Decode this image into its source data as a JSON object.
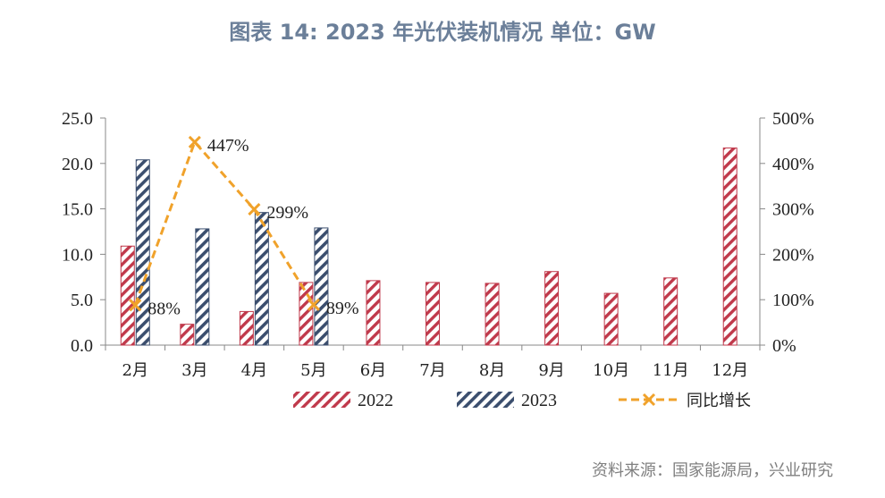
{
  "title": "图表 14: 2023 年光伏装机情况  单位：GW",
  "source": "资料来源：国家能源局，兴业研究",
  "colors": {
    "s2022": "#c0394b",
    "s2023": "#3b4e6e",
    "yoy": "#f0a22b",
    "axis": "#888888"
  },
  "chart_data": {
    "type": "bar",
    "categories": [
      "2月",
      "3月",
      "4月",
      "5月",
      "6月",
      "7月",
      "8月",
      "9月",
      "10月",
      "11月",
      "12月"
    ],
    "series": [
      {
        "name": "2022",
        "axis": "left",
        "values": [
          10.9,
          2.3,
          3.7,
          6.9,
          7.1,
          6.9,
          6.8,
          8.1,
          5.7,
          7.4,
          21.7
        ]
      },
      {
        "name": "2023",
        "axis": "left",
        "values": [
          20.4,
          12.8,
          14.6,
          12.9,
          null,
          null,
          null,
          null,
          null,
          null,
          null
        ]
      },
      {
        "name": "同比增长",
        "type": "line",
        "axis": "right",
        "values": [
          88,
          447,
          299,
          89,
          null,
          null,
          null,
          null,
          null,
          null,
          null
        ]
      }
    ],
    "data_labels": [
      "88%",
      "447%",
      "299%",
      "89%"
    ],
    "yleft": {
      "ticks": [
        "0.0",
        "5.0",
        "10.0",
        "15.0",
        "20.0",
        "25.0"
      ],
      "lim": [
        0,
        25
      ]
    },
    "yright": {
      "ticks": [
        "0%",
        "100%",
        "200%",
        "300%",
        "400%",
        "500%"
      ],
      "lim": [
        0,
        500
      ]
    },
    "grid": false,
    "legend": "bottom"
  }
}
